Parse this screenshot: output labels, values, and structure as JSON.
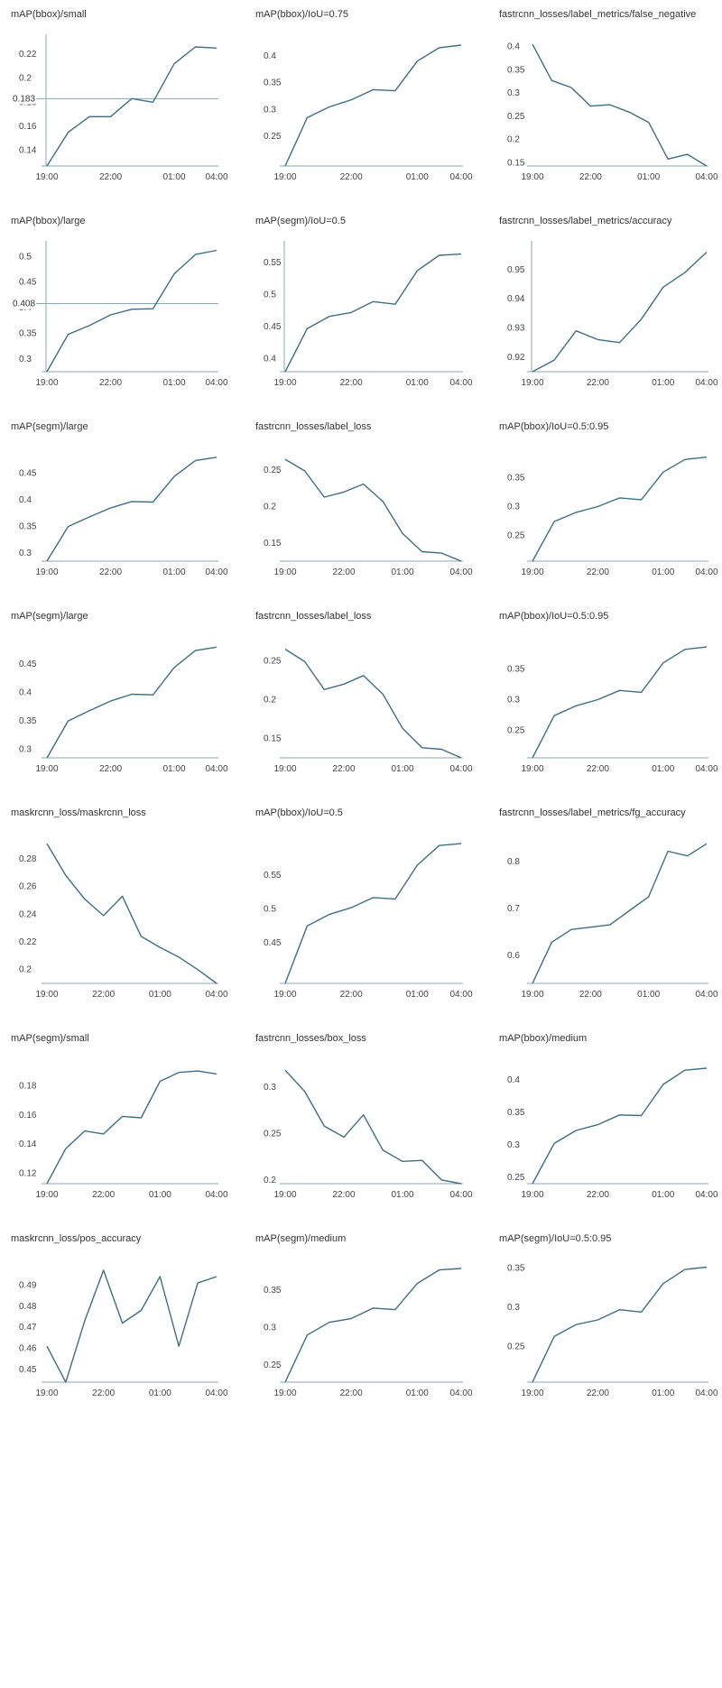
{
  "chart_data": [
    {
      "type": "line",
      "title": "mAP(bbox)/small",
      "x": [
        "19:00",
        "20:00",
        "21:00",
        "22:00",
        "23:00",
        "00:00",
        "01:00",
        "02:00",
        "04:00"
      ],
      "values": [
        0.127,
        0.155,
        0.168,
        0.168,
        0.183,
        0.18,
        0.212,
        0.226,
        0.225
      ],
      "ylim": [
        0.127,
        0.232
      ],
      "yticks": [
        0.14,
        0.16,
        0.18,
        0.2,
        0.22
      ],
      "xticks": [
        "19:00",
        "22:00",
        "01:00",
        "04:00"
      ],
      "left_axis": true,
      "ref_line": 0.183,
      "ref_label": "0.183"
    },
    {
      "type": "line",
      "title": "mAP(bbox)/IoU=0.75",
      "x": [
        "19:00",
        "20:00",
        "21:00",
        "22:00",
        "23:00",
        "00:00",
        "01:00",
        "02:00",
        "04:00"
      ],
      "values": [
        0.195,
        0.285,
        0.305,
        0.318,
        0.337,
        0.335,
        0.39,
        0.415,
        0.42
      ],
      "ylim": [
        0.195,
        0.43
      ],
      "yticks": [
        0.25,
        0.3,
        0.35,
        0.4
      ],
      "xticks": [
        "19:00",
        "22:00",
        "01:00",
        "04:00"
      ],
      "left_axis": false
    },
    {
      "type": "line",
      "title": "fastrcnn_losses/label_metrics/false_negative",
      "x": [
        "19:00",
        "20:00",
        "21:00",
        "22:00",
        "23:00",
        "00:00",
        "01:00",
        "02:00",
        "03:00",
        "04:00"
      ],
      "values": [
        0.405,
        0.327,
        0.312,
        0.272,
        0.275,
        0.259,
        0.237,
        0.158,
        0.168,
        0.143
      ],
      "ylim": [
        0.143,
        0.415
      ],
      "yticks": [
        0.15,
        0.2,
        0.25,
        0.3,
        0.35,
        0.4
      ],
      "xticks": [
        "19:00",
        "22:00",
        "01:00",
        "04:00"
      ],
      "left_axis": false
    },
    {
      "type": "line",
      "title": "mAP(bbox)/large",
      "x": [
        "19:00",
        "20:00",
        "21:00",
        "22:00",
        "23:00",
        "00:00",
        "01:00",
        "02:00",
        "04:00"
      ],
      "values": [
        0.275,
        0.348,
        0.365,
        0.386,
        0.397,
        0.398,
        0.466,
        0.504,
        0.512
      ],
      "ylim": [
        0.275,
        0.52
      ],
      "yticks": [
        0.3,
        0.35,
        0.4,
        0.45,
        0.5
      ],
      "xticks": [
        "19:00",
        "22:00",
        "01:00",
        "04:00"
      ],
      "left_axis": true,
      "ref_line": 0.408,
      "ref_label": "0.408"
    },
    {
      "type": "line",
      "title": "mAP(segm)/IoU=0.5",
      "x": [
        "19:00",
        "20:00",
        "21:00",
        "22:00",
        "23:00",
        "00:00",
        "01:00",
        "02:00",
        "04:00"
      ],
      "values": [
        0.38,
        0.447,
        0.466,
        0.472,
        0.489,
        0.485,
        0.537,
        0.561,
        0.563
      ],
      "ylim": [
        0.38,
        0.575
      ],
      "yticks": [
        0.4,
        0.45,
        0.5,
        0.55
      ],
      "xticks": [
        "19:00",
        "22:00",
        "01:00",
        "04:00"
      ],
      "left_axis": true
    },
    {
      "type": "line",
      "title": "fastrcnn_losses/label_metrics/accuracy",
      "x": [
        "19:00",
        "20:00",
        "21:00",
        "22:00",
        "23:00",
        "00:00",
        "01:00",
        "02:00",
        "04:00"
      ],
      "values": [
        0.915,
        0.919,
        0.929,
        0.926,
        0.925,
        0.933,
        0.944,
        0.949,
        0.956
      ],
      "ylim": [
        0.915,
        0.958
      ],
      "yticks": [
        0.92,
        0.93,
        0.94,
        0.95
      ],
      "xticks": [
        "19:00",
        "22:00",
        "01:00",
        "04:00"
      ],
      "left_axis": true
    },
    {
      "type": "line",
      "title": "mAP(segm)/large",
      "x": [
        "19:00",
        "20:00",
        "21:00",
        "22:00",
        "23:00",
        "00:00",
        "01:00",
        "02:00",
        "04:00"
      ],
      "values": [
        0.285,
        0.35,
        0.368,
        0.385,
        0.397,
        0.396,
        0.444,
        0.474,
        0.48
      ],
      "ylim": [
        0.285,
        0.49
      ],
      "yticks": [
        0.3,
        0.35,
        0.4,
        0.45
      ],
      "xticks": [
        "19:00",
        "22:00",
        "01:00",
        "04:00"
      ],
      "left_axis": false
    },
    {
      "type": "line",
      "title": "fastrcnn_losses/label_loss",
      "x": [
        "19:00",
        "20:00",
        "21:00",
        "22:00",
        "23:00",
        "00:00",
        "01:00",
        "02:00",
        "03:00",
        "04:00"
      ],
      "values": [
        0.265,
        0.249,
        0.213,
        0.22,
        0.231,
        0.207,
        0.163,
        0.138,
        0.136,
        0.125
      ],
      "ylim": [
        0.125,
        0.275
      ],
      "yticks": [
        0.15,
        0.2,
        0.25
      ],
      "xticks": [
        "19:00",
        "22:00",
        "01:00",
        "04:00"
      ],
      "left_axis": false
    },
    {
      "type": "line",
      "title": "mAP(bbox)/IoU=0.5:0.95",
      "x": [
        "19:00",
        "20:00",
        "21:00",
        "22:00",
        "23:00",
        "00:00",
        "01:00",
        "02:00",
        "04:00"
      ],
      "values": [
        0.205,
        0.274,
        0.29,
        0.3,
        0.315,
        0.312,
        0.36,
        0.382,
        0.386
      ],
      "ylim": [
        0.205,
        0.395
      ],
      "yticks": [
        0.25,
        0.3,
        0.35
      ],
      "xticks": [
        "19:00",
        "22:00",
        "01:00",
        "04:00"
      ],
      "left_axis": false
    },
    {
      "type": "line",
      "title": "mAP(segm)/large",
      "x": [
        "19:00",
        "20:00",
        "21:00",
        "22:00",
        "23:00",
        "00:00",
        "01:00",
        "02:00",
        "04:00"
      ],
      "values": [
        0.285,
        0.35,
        0.368,
        0.385,
        0.397,
        0.396,
        0.444,
        0.474,
        0.48
      ],
      "ylim": [
        0.285,
        0.49
      ],
      "yticks": [
        0.3,
        0.35,
        0.4,
        0.45
      ],
      "xticks": [
        "19:00",
        "22:00",
        "01:00",
        "04:00"
      ],
      "left_axis": false
    },
    {
      "type": "line",
      "title": "fastrcnn_losses/label_loss",
      "x": [
        "19:00",
        "20:00",
        "21:00",
        "22:00",
        "23:00",
        "00:00",
        "01:00",
        "02:00",
        "03:00",
        "04:00"
      ],
      "values": [
        0.265,
        0.249,
        0.213,
        0.22,
        0.231,
        0.207,
        0.163,
        0.138,
        0.136,
        0.125
      ],
      "ylim": [
        0.125,
        0.275
      ],
      "yticks": [
        0.15,
        0.2,
        0.25
      ],
      "xticks": [
        "19:00",
        "22:00",
        "01:00",
        "04:00"
      ],
      "left_axis": false
    },
    {
      "type": "line",
      "title": "mAP(bbox)/IoU=0.5:0.95",
      "x": [
        "19:00",
        "20:00",
        "21:00",
        "22:00",
        "23:00",
        "00:00",
        "01:00",
        "02:00",
        "04:00"
      ],
      "values": [
        0.205,
        0.274,
        0.29,
        0.3,
        0.315,
        0.312,
        0.36,
        0.382,
        0.386
      ],
      "ylim": [
        0.205,
        0.395
      ],
      "yticks": [
        0.25,
        0.3,
        0.35
      ],
      "xticks": [
        "19:00",
        "22:00",
        "01:00",
        "04:00"
      ],
      "left_axis": false
    },
    {
      "type": "line",
      "title": "maskrcnn_loss/maskrcnn_loss",
      "x": [
        "19:00",
        "20:00",
        "21:00",
        "22:00",
        "23:00",
        "00:00",
        "01:00",
        "02:00",
        "03:00",
        "04:00"
      ],
      "values": [
        0.291,
        0.268,
        0.251,
        0.239,
        0.253,
        0.224,
        0.216,
        0.209,
        0.2,
        0.19
      ],
      "ylim": [
        0.19,
        0.295
      ],
      "yticks": [
        0.2,
        0.22,
        0.24,
        0.26,
        0.28
      ],
      "xticks": [
        "19:00",
        "22:00",
        "01:00",
        "04:00"
      ],
      "left_axis": false
    },
    {
      "type": "line",
      "title": "mAP(bbox)/IoU=0.5",
      "x": [
        "19:00",
        "20:00",
        "21:00",
        "22:00",
        "23:00",
        "00:00",
        "01:00",
        "02:00",
        "04:00"
      ],
      "values": [
        0.39,
        0.475,
        0.492,
        0.502,
        0.517,
        0.515,
        0.565,
        0.594,
        0.597
      ],
      "ylim": [
        0.39,
        0.605
      ],
      "yticks": [
        0.45,
        0.5,
        0.55
      ],
      "xticks": [
        "19:00",
        "22:00",
        "01:00",
        "04:00"
      ],
      "left_axis": false
    },
    {
      "type": "line",
      "title": "fastrcnn_losses/label_metrics/fg_accuracy",
      "x": [
        "19:00",
        "20:00",
        "21:00",
        "22:00",
        "23:00",
        "00:00",
        "01:00",
        "02:00",
        "03:00",
        "04:00"
      ],
      "values": [
        0.54,
        0.628,
        0.655,
        0.66,
        0.665,
        0.695,
        0.725,
        0.822,
        0.812,
        0.838
      ],
      "ylim": [
        0.54,
        0.85
      ],
      "yticks": [
        0.6,
        0.7,
        0.8
      ],
      "xticks": [
        "19:00",
        "22:00",
        "01:00",
        "04:00"
      ],
      "left_axis": false
    },
    {
      "type": "line",
      "title": "mAP(segm)/small",
      "x": [
        "19:00",
        "20:00",
        "21:00",
        "22:00",
        "23:00",
        "00:00",
        "01:00",
        "02:00",
        "03:00",
        "04:00"
      ],
      "values": [
        0.113,
        0.137,
        0.149,
        0.147,
        0.159,
        0.158,
        0.183,
        0.189,
        0.19,
        0.188
      ],
      "ylim": [
        0.113,
        0.195
      ],
      "yticks": [
        0.12,
        0.14,
        0.16,
        0.18
      ],
      "xticks": [
        "19:00",
        "22:00",
        "01:00",
        "04:00"
      ],
      "left_axis": false
    },
    {
      "type": "line",
      "title": "fastrcnn_losses/box_loss",
      "x": [
        "19:00",
        "20:00",
        "21:00",
        "22:00",
        "23:00",
        "00:00",
        "01:00",
        "02:00",
        "03:00",
        "04:00"
      ],
      "values": [
        0.318,
        0.295,
        0.258,
        0.246,
        0.27,
        0.232,
        0.22,
        0.221,
        0.2,
        0.196
      ],
      "ylim": [
        0.196,
        0.325
      ],
      "yticks": [
        0.2,
        0.25,
        0.3
      ],
      "xticks": [
        "19:00",
        "22:00",
        "01:00",
        "04:00"
      ],
      "left_axis": false
    },
    {
      "type": "line",
      "title": "mAP(bbox)/medium",
      "x": [
        "19:00",
        "20:00",
        "21:00",
        "22:00",
        "23:00",
        "00:00",
        "01:00",
        "02:00",
        "04:00"
      ],
      "values": [
        0.24,
        0.302,
        0.322,
        0.331,
        0.346,
        0.345,
        0.393,
        0.415,
        0.418
      ],
      "ylim": [
        0.24,
        0.425
      ],
      "yticks": [
        0.25,
        0.3,
        0.35,
        0.4
      ],
      "xticks": [
        "19:00",
        "22:00",
        "01:00",
        "04:00"
      ],
      "left_axis": false
    },
    {
      "type": "line",
      "title": "maskrcnn_loss/pos_accuracy",
      "x": [
        "19:00",
        "20:00",
        "21:00",
        "22:00",
        "23:00",
        "00:00",
        "01:00",
        "02:00",
        "03:00",
        "04:00"
      ],
      "values": [
        0.461,
        0.444,
        0.473,
        0.497,
        0.472,
        0.478,
        0.494,
        0.461,
        0.491,
        0.494
      ],
      "ylim": [
        0.444,
        0.5
      ],
      "yticks": [
        0.45,
        0.46,
        0.47,
        0.48,
        0.49
      ],
      "xticks": [
        "19:00",
        "22:00",
        "01:00",
        "04:00"
      ],
      "left_axis": false
    },
    {
      "type": "line",
      "title": "mAP(segm)/medium",
      "x": [
        "19:00",
        "20:00",
        "21:00",
        "22:00",
        "23:00",
        "00:00",
        "01:00",
        "02:00",
        "04:00"
      ],
      "values": [
        0.227,
        0.29,
        0.307,
        0.312,
        0.326,
        0.324,
        0.359,
        0.377,
        0.379
      ],
      "ylim": [
        0.227,
        0.385
      ],
      "yticks": [
        0.25,
        0.3,
        0.35
      ],
      "xticks": [
        "19:00",
        "22:00",
        "01:00",
        "04:00"
      ],
      "left_axis": false
    },
    {
      "type": "line",
      "title": "mAP(segm)/IoU=0.5:0.95",
      "x": [
        "19:00",
        "20:00",
        "21:00",
        "22:00",
        "23:00",
        "00:00",
        "01:00",
        "02:00",
        "04:00"
      ],
      "values": [
        0.205,
        0.263,
        0.278,
        0.284,
        0.297,
        0.294,
        0.33,
        0.348,
        0.351
      ],
      "ylim": [
        0.205,
        0.355
      ],
      "yticks": [
        0.25,
        0.3,
        0.35
      ],
      "xticks": [
        "19:00",
        "22:00",
        "01:00",
        "04:00"
      ],
      "left_axis": false
    }
  ]
}
